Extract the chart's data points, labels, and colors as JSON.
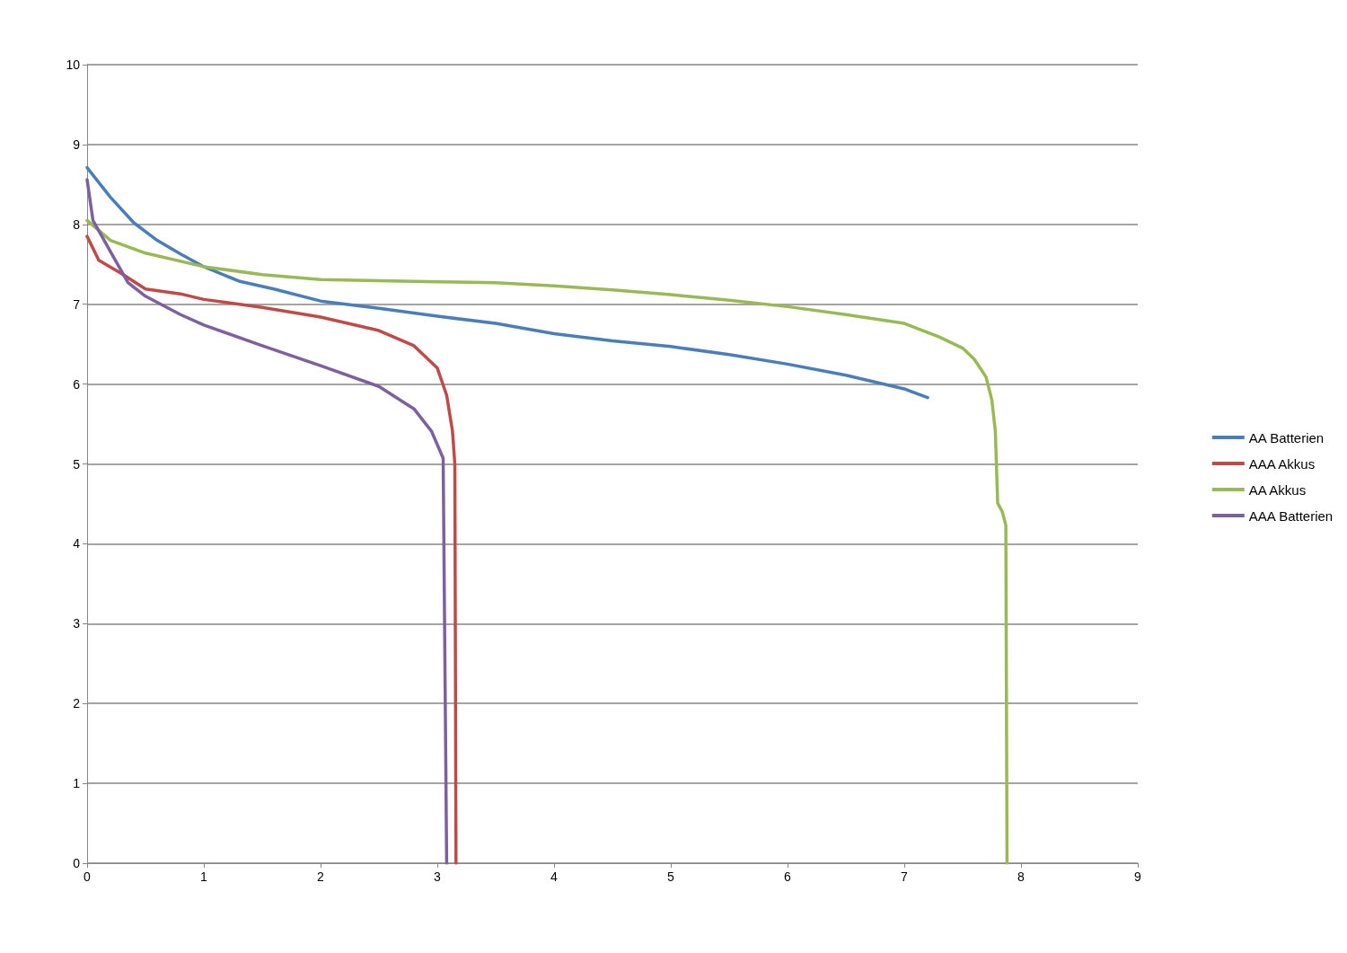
{
  "chart_data": {
    "type": "line",
    "xlim": [
      0,
      9
    ],
    "xticks": [
      0,
      1,
      2,
      3,
      4,
      5,
      6,
      7,
      8,
      9
    ],
    "ylim": [
      0,
      10
    ],
    "yticks": [
      0,
      1,
      2,
      3,
      4,
      5,
      6,
      7,
      8,
      9,
      10
    ],
    "grid": "y",
    "legend": "right",
    "marker": "none",
    "line_style": "solid",
    "series": [
      {
        "name": "AA Batterien",
        "color": "#4a7ebb",
        "x": [
          0,
          0.2,
          0.4,
          0.6,
          0.8,
          1,
          1.3,
          1.6,
          2,
          2.5,
          3,
          3.5,
          4,
          4.5,
          5,
          5.5,
          6,
          6.5,
          7,
          7.2
        ],
        "values": [
          8.71,
          8.34,
          8.02,
          7.8,
          7.63,
          7.47,
          7.29,
          7.19,
          7.04,
          6.95,
          6.85,
          6.76,
          6.63,
          6.54,
          6.47,
          6.37,
          6.25,
          6.11,
          5.94,
          5.83
        ]
      },
      {
        "name": "AAA Akkus",
        "color": "#be4b48",
        "x": [
          0,
          0.1,
          0.3,
          0.5,
          0.8,
          1,
          1.5,
          2,
          2.5,
          2.8,
          3,
          3.08,
          3.13,
          3.15,
          3.16
        ],
        "values": [
          7.85,
          7.55,
          7.38,
          7.19,
          7.13,
          7.06,
          6.96,
          6.84,
          6.67,
          6.48,
          6.2,
          5.86,
          5.41,
          5,
          0
        ]
      },
      {
        "name": "AA Akkus",
        "color": "#98b954",
        "x": [
          0,
          0.2,
          0.5,
          1,
          1.5,
          2,
          3,
          3.5,
          4,
          4.5,
          5,
          5.5,
          6,
          6.5,
          7,
          7.3,
          7.5,
          7.6,
          7.7,
          7.75,
          7.78,
          7.8,
          7.84,
          7.87,
          7.88
        ],
        "values": [
          8.05,
          7.8,
          7.64,
          7.47,
          7.37,
          7.31,
          7.28,
          7.27,
          7.23,
          7.18,
          7.12,
          7.05,
          6.97,
          6.87,
          6.76,
          6.59,
          6.45,
          6.31,
          6.09,
          5.8,
          5.41,
          4.51,
          4.4,
          4.23,
          0
        ]
      },
      {
        "name": "AAA Batterien",
        "color": "#7d60a0",
        "x": [
          0,
          0.05,
          0.2,
          0.35,
          0.5,
          0.8,
          1,
          1.5,
          2,
          2.5,
          2.8,
          2.95,
          3.05,
          3.08
        ],
        "values": [
          8.56,
          8.05,
          7.66,
          7.27,
          7.1,
          6.87,
          6.74,
          6.48,
          6.23,
          5.97,
          5.69,
          5.41,
          5.07,
          0
        ]
      }
    ]
  }
}
